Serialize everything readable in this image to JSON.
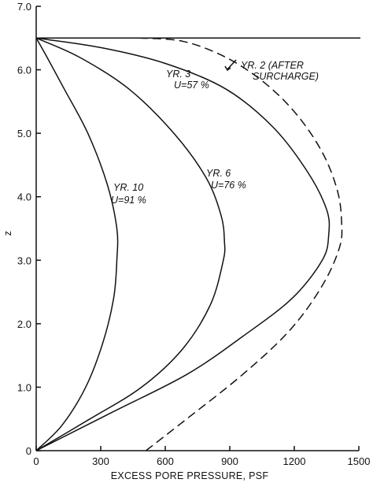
{
  "chart_data": {
    "type": "line",
    "title": "",
    "xlabel": "EXCESS PORE PRESSURE, PSF",
    "ylabel": "z",
    "xlim": [
      0,
      1500
    ],
    "ylim": [
      0,
      7.0
    ],
    "x_ticks": [
      "0",
      "300",
      "600",
      "900",
      "1200",
      "1500"
    ],
    "y_ticks": [
      "0",
      "1.0",
      "2.0",
      "3.0",
      "4.0",
      "5.0",
      "6.0",
      "7.0"
    ],
    "grid": false,
    "series": [
      {
        "name": "YR. 2 (AFTER SURCHARGE)",
        "style": "dashed",
        "points": [
          [
            510,
            0
          ],
          [
            700,
            0.5
          ],
          [
            960,
            1.2
          ],
          [
            1180,
            1.9
          ],
          [
            1330,
            2.6
          ],
          [
            1410,
            3.2
          ],
          [
            1420,
            3.6
          ],
          [
            1400,
            4.1
          ],
          [
            1330,
            4.7
          ],
          [
            1210,
            5.3
          ],
          [
            1060,
            5.8
          ],
          [
            880,
            6.2
          ],
          [
            680,
            6.45
          ],
          [
            480,
            6.5
          ]
        ]
      },
      {
        "name": "YR. 3 U=57 %",
        "style": "solid",
        "points": [
          [
            0,
            0
          ],
          [
            350,
            0.6
          ],
          [
            700,
            1.2
          ],
          [
            960,
            1.8
          ],
          [
            1190,
            2.4
          ],
          [
            1330,
            3.0
          ],
          [
            1360,
            3.4
          ],
          [
            1350,
            3.8
          ],
          [
            1260,
            4.4
          ],
          [
            1100,
            5.1
          ],
          [
            880,
            5.7
          ],
          [
            600,
            6.1
          ],
          [
            300,
            6.35
          ],
          [
            0,
            6.5
          ]
        ]
      },
      {
        "name": "YR. 6 U=76 %",
        "style": "solid",
        "points": [
          [
            0,
            0
          ],
          [
            250,
            0.5
          ],
          [
            490,
            1.0
          ],
          [
            680,
            1.6
          ],
          [
            810,
            2.3
          ],
          [
            870,
            3.0
          ],
          [
            875,
            3.3
          ],
          [
            860,
            3.7
          ],
          [
            790,
            4.3
          ],
          [
            640,
            5.0
          ],
          [
            430,
            5.7
          ],
          [
            200,
            6.2
          ],
          [
            0,
            6.5
          ]
        ]
      },
      {
        "name": "YR. 10 U=91 %",
        "style": "solid",
        "points": [
          [
            0,
            0
          ],
          [
            120,
            0.4
          ],
          [
            230,
            1.0
          ],
          [
            310,
            1.7
          ],
          [
            360,
            2.4
          ],
          [
            375,
            3.0
          ],
          [
            375,
            3.5
          ],
          [
            330,
            4.2
          ],
          [
            240,
            5.0
          ],
          [
            130,
            5.7
          ],
          [
            50,
            6.2
          ],
          [
            0,
            6.5
          ]
        ]
      }
    ],
    "top_line_z": 6.5,
    "annotations": [
      {
        "text": "YR. 2 (AFTER",
        "text2": "SURCHARGE)"
      },
      {
        "text": "YR. 3",
        "text2": "U=57 %"
      },
      {
        "text": "YR. 6",
        "text2": "U=76 %"
      },
      {
        "text": "YR. 10",
        "text2": "U=91 %"
      }
    ]
  }
}
